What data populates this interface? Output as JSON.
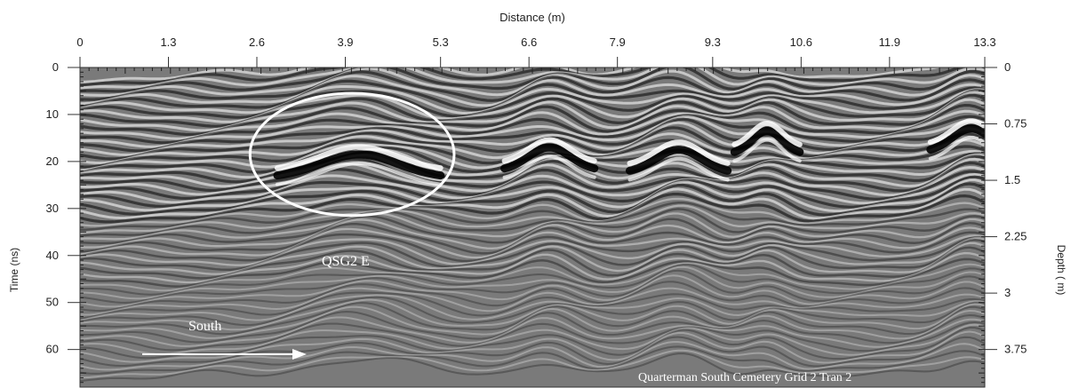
{
  "chart_data": {
    "type": "heatmap",
    "subtype": "ground-penetrating-radar-profile",
    "title": "",
    "xlabel": "Distance (m)",
    "ylabel_left": "Time (ns)",
    "ylabel_right": "Depth ( m)",
    "x_ticks": [
      "0",
      "1.3",
      "2.6",
      "3.9",
      "5.3",
      "6.6",
      "7.9",
      "9.3",
      "10.6",
      "11.9",
      "13.3"
    ],
    "x_tick_values": [
      0,
      1.3,
      2.6,
      3.9,
      5.3,
      6.6,
      7.9,
      9.3,
      10.6,
      11.9,
      13.3
    ],
    "xlim": [
      0,
      13.3
    ],
    "y_left_ticks": [
      "0",
      "10",
      "20",
      "30",
      "40",
      "50",
      "60"
    ],
    "y_left_values": [
      0,
      10,
      20,
      30,
      40,
      50,
      60
    ],
    "ylim_left": [
      0,
      68
    ],
    "y_right_ticks": [
      "0",
      "0.75",
      "1.5",
      "2.25",
      "3",
      "3.75"
    ],
    "y_right_values": [
      0,
      0.75,
      1.5,
      2.25,
      3,
      3.75
    ],
    "ylim_right": [
      0,
      4.25
    ],
    "anomalies": [
      {
        "label": "QSG2 E",
        "x_center": 4.0,
        "t_center": 18.5,
        "x_radius": 1.5,
        "t_radius": 13
      }
    ],
    "annotations": {
      "direction": "South",
      "caption": "Quarterman South Cemetery Grid 2 Tran 2"
    },
    "colormap": "grayscale"
  }
}
